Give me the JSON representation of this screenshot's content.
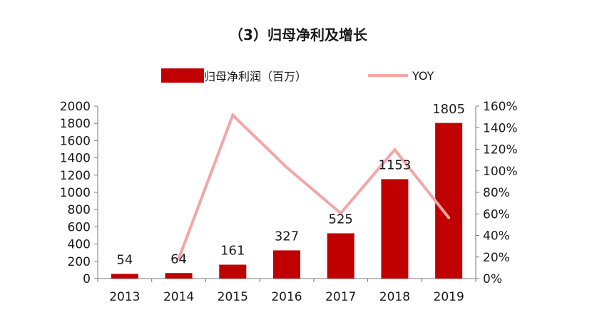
{
  "chart_data": {
    "type": "bar",
    "title": "（3）归母净利及增长",
    "categories": [
      "2013",
      "2014",
      "2015",
      "2016",
      "2017",
      "2018",
      "2019"
    ],
    "series": [
      {
        "name": "归母净利润（百万）",
        "type": "bar",
        "axis": "left",
        "values": [
          54,
          64,
          161,
          327,
          525,
          1153,
          1805
        ],
        "data_labels": [
          "54",
          "64",
          "161",
          "327",
          "525",
          "1153",
          "1805"
        ]
      },
      {
        "name": "YOY",
        "type": "line",
        "axis": "right",
        "values": [
          null,
          0.185,
          1.516,
          1.031,
          0.606,
          1.196,
          0.565
        ]
      }
    ],
    "y_left": {
      "ylim": [
        0,
        2000
      ],
      "ticks": [
        0,
        200,
        400,
        600,
        800,
        1000,
        1200,
        1400,
        1600,
        1800,
        2000
      ],
      "tick_labels": [
        "0",
        "200",
        "400",
        "600",
        "800",
        "1000",
        "1200",
        "1400",
        "1600",
        "1800",
        "2000"
      ]
    },
    "y_right": {
      "ylim": [
        0,
        1.6
      ],
      "ticks": [
        0,
        0.2,
        0.4,
        0.6,
        0.8,
        1.0,
        1.2,
        1.4,
        1.6
      ],
      "tick_labels": [
        "0%",
        "20%",
        "40%",
        "60%",
        "80%",
        "100%",
        "120%",
        "140%",
        "160%"
      ]
    },
    "legend": "top",
    "grid": false,
    "colors": {
      "bar": "#c00000",
      "line": "#f4a6a6",
      "axis": "#7a7a7a",
      "text": "#1a1a1a"
    }
  }
}
